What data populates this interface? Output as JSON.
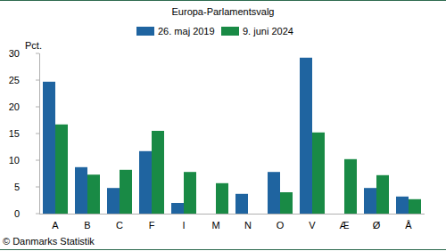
{
  "chart_data": {
    "type": "bar",
    "title": "Europa-Parlamentsvalg",
    "y_label": "Pct.",
    "source": "© Danmarks Statistik",
    "categories": [
      "A",
      "B",
      "C",
      "F",
      "I",
      "M",
      "N",
      "O",
      "V",
      "Æ",
      "Ø",
      "Å"
    ],
    "series": [
      {
        "name": "26. maj 2019",
        "color": "#1f64a0",
        "values": [
          24.7,
          8.7,
          4.8,
          11.7,
          2.0,
          null,
          3.7,
          7.8,
          29.2,
          null,
          4.8,
          3.2
        ]
      },
      {
        "name": "9. juni 2024",
        "color": "#198a45",
        "values": [
          16.7,
          7.3,
          8.2,
          15.5,
          7.8,
          5.7,
          null,
          4.0,
          15.2,
          10.2,
          7.2,
          2.7
        ]
      }
    ],
    "ylim": [
      0,
      30
    ],
    "yticks": [
      0,
      5,
      10,
      15,
      20,
      25,
      30
    ],
    "grid": false,
    "legend": "top"
  }
}
